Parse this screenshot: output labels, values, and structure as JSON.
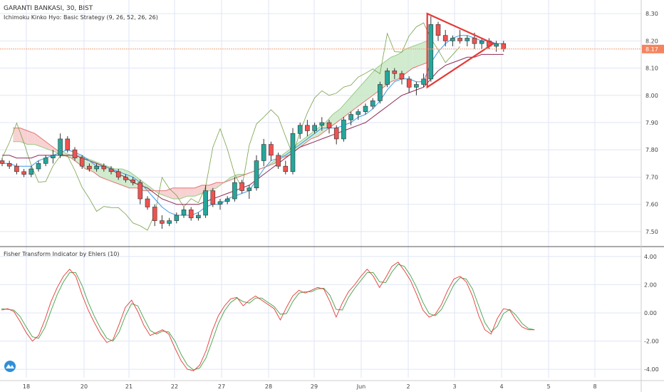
{
  "colors": {
    "grid": "#dfe6f5",
    "axis_text": "#444444",
    "candle_up": "#26a69a",
    "candle_down": "#ef5350",
    "candle_wick": "#333333",
    "tenkan": "#3d9be9",
    "kijun": "#8e2a55",
    "lagging": "#78a04a",
    "lead_a": "#9acb87",
    "lead_b": "#e57373",
    "cloud_bull": "#c9e8c6",
    "cloud_bear": "#f7caca",
    "triangle": "#e53935",
    "fisher": "#e53935",
    "trigger": "#43a047",
    "price_line": "#f2a27d",
    "price_tag_bg": "#f4845f"
  },
  "chart_data": [
    {
      "type": "candlestick",
      "title": "GARANTI BANKASI, 30, BIST",
      "subtitle": "Ichimoku Kinko Hyo: Basic Strategy (9, 26, 52, 26, 26)",
      "x_ticks": [
        "18",
        "20",
        "21",
        "22",
        "27",
        "28",
        "29",
        "Jun",
        "2",
        "3",
        "4",
        "5",
        "8"
      ],
      "ylim": [
        7.45,
        8.35
      ],
      "y_ticks": [
        7.5,
        7.6,
        7.7,
        7.8,
        7.9,
        8.0,
        8.1,
        8.2,
        8.3
      ],
      "y_tick_labels": [
        "7.50",
        "7.60",
        "7.70",
        "7.80",
        "7.90",
        "8.00",
        "8.10",
        "8.20",
        "8.30"
      ],
      "last_price": 8.17,
      "last_price_label": "8.17",
      "candles": [
        [
          7.76,
          7.77,
          7.74,
          7.75
        ],
        [
          7.75,
          7.76,
          7.73,
          7.74
        ],
        [
          7.74,
          7.75,
          7.71,
          7.72
        ],
        [
          7.72,
          7.73,
          7.7,
          7.71
        ],
        [
          7.71,
          7.74,
          7.7,
          7.73
        ],
        [
          7.73,
          7.76,
          7.72,
          7.75
        ],
        [
          7.75,
          7.78,
          7.74,
          7.77
        ],
        [
          7.77,
          7.8,
          7.75,
          7.78
        ],
        [
          7.78,
          7.86,
          7.77,
          7.84
        ],
        [
          7.84,
          7.85,
          7.79,
          7.8
        ],
        [
          7.8,
          7.81,
          7.76,
          7.77
        ],
        [
          7.77,
          7.78,
          7.73,
          7.74
        ],
        [
          7.74,
          7.75,
          7.72,
          7.73
        ],
        [
          7.73,
          7.75,
          7.72,
          7.74
        ],
        [
          7.74,
          7.75,
          7.72,
          7.73
        ],
        [
          7.73,
          7.74,
          7.71,
          7.72
        ],
        [
          7.72,
          7.73,
          7.69,
          7.7
        ],
        [
          7.7,
          7.71,
          7.68,
          7.69
        ],
        [
          7.69,
          7.7,
          7.67,
          7.68
        ],
        [
          7.68,
          7.69,
          7.6,
          7.62
        ],
        [
          7.62,
          7.63,
          7.58,
          7.59
        ],
        [
          7.59,
          7.6,
          7.52,
          7.54
        ],
        [
          7.54,
          7.56,
          7.51,
          7.53
        ],
        [
          7.53,
          7.55,
          7.52,
          7.54
        ],
        [
          7.54,
          7.57,
          7.53,
          7.56
        ],
        [
          7.56,
          7.59,
          7.55,
          7.58
        ],
        [
          7.58,
          7.59,
          7.54,
          7.55
        ],
        [
          7.55,
          7.57,
          7.54,
          7.56
        ],
        [
          7.56,
          7.67,
          7.55,
          7.65
        ],
        [
          7.65,
          7.66,
          7.59,
          7.6
        ],
        [
          7.6,
          7.62,
          7.58,
          7.61
        ],
        [
          7.61,
          7.63,
          7.6,
          7.62
        ],
        [
          7.62,
          7.7,
          7.61,
          7.68
        ],
        [
          7.68,
          7.69,
          7.64,
          7.65
        ],
        [
          7.65,
          7.67,
          7.62,
          7.66
        ],
        [
          7.66,
          7.78,
          7.65,
          7.76
        ],
        [
          7.76,
          7.84,
          7.74,
          7.82
        ],
        [
          7.82,
          7.83,
          7.76,
          7.78
        ],
        [
          7.78,
          7.79,
          7.73,
          7.74
        ],
        [
          7.74,
          7.76,
          7.71,
          7.72
        ],
        [
          7.72,
          7.88,
          7.71,
          7.86
        ],
        [
          7.86,
          7.9,
          7.84,
          7.89
        ],
        [
          7.89,
          7.91,
          7.85,
          7.87
        ],
        [
          7.87,
          7.9,
          7.86,
          7.89
        ],
        [
          7.89,
          7.92,
          7.87,
          7.9
        ],
        [
          7.9,
          7.91,
          7.86,
          7.88
        ],
        [
          7.88,
          7.89,
          7.82,
          7.84
        ],
        [
          7.84,
          7.92,
          7.83,
          7.91
        ],
        [
          7.91,
          7.94,
          7.89,
          7.93
        ],
        [
          7.93,
          7.95,
          7.91,
          7.94
        ],
        [
          7.94,
          7.97,
          7.93,
          7.96
        ],
        [
          7.96,
          7.99,
          7.95,
          7.98
        ],
        [
          7.98,
          8.05,
          7.97,
          8.04
        ],
        [
          8.04,
          8.1,
          8.03,
          8.09
        ],
        [
          8.09,
          8.1,
          8.06,
          8.08
        ],
        [
          8.08,
          8.09,
          8.04,
          8.06
        ],
        [
          8.06,
          8.07,
          8.01,
          8.03
        ],
        [
          8.03,
          8.05,
          8.0,
          8.04
        ],
        [
          8.04,
          8.08,
          8.03,
          8.06
        ],
        [
          8.06,
          8.29,
          8.05,
          8.26
        ],
        [
          8.26,
          8.27,
          8.2,
          8.22
        ],
        [
          8.22,
          8.24,
          8.18,
          8.2
        ],
        [
          8.2,
          8.22,
          8.18,
          8.21
        ],
        [
          8.21,
          8.24,
          8.19,
          8.2
        ],
        [
          8.2,
          8.22,
          8.18,
          8.21
        ],
        [
          8.21,
          8.23,
          8.17,
          8.19
        ],
        [
          8.19,
          8.21,
          8.17,
          8.2
        ],
        [
          8.2,
          8.21,
          8.17,
          8.18
        ],
        [
          8.18,
          8.2,
          8.16,
          8.19
        ],
        [
          8.19,
          8.2,
          8.16,
          8.17
        ]
      ],
      "ichimoku": {
        "tenkan": [
          7.75,
          7.75,
          7.74,
          7.74,
          7.74,
          7.76,
          7.77,
          7.78,
          7.79,
          7.8,
          7.79,
          7.78,
          7.76,
          7.74,
          7.74,
          7.73,
          7.72,
          7.71,
          7.7,
          7.68,
          7.65,
          7.62,
          7.59,
          7.57,
          7.56,
          7.56,
          7.56,
          7.57,
          7.59,
          7.6,
          7.6,
          7.62,
          7.63,
          7.64,
          7.65,
          7.69,
          7.73,
          7.76,
          7.77,
          7.78,
          7.8,
          7.82,
          7.84,
          7.86,
          7.88,
          7.88,
          7.88,
          7.89,
          7.9,
          7.92,
          7.93,
          7.95,
          7.98,
          8.02,
          8.05,
          8.06,
          8.06,
          8.05,
          8.05,
          8.12,
          8.16,
          8.19,
          8.21,
          8.22,
          8.22,
          8.21,
          8.2,
          8.2,
          8.19,
          8.19
        ],
        "kijun": [
          7.78,
          7.78,
          7.77,
          7.77,
          7.77,
          7.78,
          7.78,
          7.78,
          7.78,
          7.78,
          7.78,
          7.77,
          7.76,
          7.75,
          7.74,
          7.73,
          7.71,
          7.7,
          7.68,
          7.67,
          7.66,
          7.64,
          7.62,
          7.61,
          7.6,
          7.6,
          7.6,
          7.6,
          7.61,
          7.62,
          7.63,
          7.64,
          7.65,
          7.66,
          7.67,
          7.69,
          7.71,
          7.73,
          7.75,
          7.77,
          7.79,
          7.81,
          7.82,
          7.83,
          7.84,
          7.85,
          7.86,
          7.87,
          7.88,
          7.89,
          7.9,
          7.92,
          7.94,
          7.96,
          7.98,
          8.0,
          8.01,
          8.02,
          8.03,
          8.06,
          8.09,
          8.11,
          8.12,
          8.13,
          8.14,
          8.14,
          8.15,
          8.15,
          8.15,
          8.15
        ],
        "lead_a_line": [
          7.83,
          7.83,
          7.82,
          7.82,
          7.81,
          7.8,
          7.79,
          7.79,
          7.78,
          7.78,
          7.77,
          7.76,
          7.75,
          7.74,
          7.73,
          7.73,
          7.72,
          7.7,
          7.68,
          7.66,
          7.64,
          7.63,
          7.62,
          7.62,
          7.63,
          7.63,
          7.64,
          7.65,
          7.66,
          7.68,
          7.7,
          7.71,
          7.71,
          7.72,
          7.73,
          7.74,
          7.76,
          7.78,
          7.8,
          7.82,
          7.84,
          7.86,
          7.88,
          7.9,
          7.93,
          7.95,
          7.98,
          8.01,
          8.04,
          8.07,
          8.1,
          8.12,
          8.14,
          8.15,
          8.17,
          8.18,
          8.19,
          8.2
        ],
        "lead_b_line": [
          7.88,
          7.88,
          7.87,
          7.86,
          7.84,
          7.82,
          7.8,
          7.78,
          7.77,
          7.75,
          7.73,
          7.72,
          7.7,
          7.69,
          7.68,
          7.67,
          7.66,
          7.66,
          7.65,
          7.65,
          7.65,
          7.65,
          7.66,
          7.66,
          7.66,
          7.66,
          7.67,
          7.67,
          7.68,
          7.68,
          7.69,
          7.7,
          7.71,
          7.72,
          7.73,
          7.74,
          7.75,
          7.77,
          7.78,
          7.8,
          7.82,
          7.84,
          7.85,
          7.87,
          7.89,
          7.91,
          7.93,
          7.95,
          7.97,
          7.99,
          8.01,
          8.03,
          8.05,
          8.06,
          8.08,
          8.1,
          8.11,
          8.12
        ]
      },
      "triangle": {
        "points": [
          [
            58.5,
            8.3
          ],
          [
            67.6,
            8.19
          ],
          [
            58.5,
            8.03
          ]
        ]
      }
    },
    {
      "type": "line",
      "title": "Fisher Transform Indicator by Ehlers (10)",
      "ylim": [
        -4.6,
        4.6
      ],
      "y_ticks": [
        4.0,
        2.0,
        0.0,
        -2.0,
        -4.0
      ],
      "y_tick_labels": [
        "4.00",
        "2.00",
        "0.00",
        "-2.00",
        "-4.00"
      ],
      "series": [
        {
          "values": [
            0.2,
            0.3,
            0.1,
            -0.6,
            -1.4,
            -2.0,
            -1.6,
            -0.5,
            0.8,
            1.8,
            2.6,
            3.1,
            2.6,
            1.3,
            0.2,
            -0.7,
            -1.5,
            -2.1,
            -1.9,
            -0.8,
            0.4,
            0.9,
            0.1,
            -0.9,
            -1.6,
            -1.4,
            -1.2,
            -1.5,
            -2.5,
            -3.4,
            -4.0,
            -4.1,
            -3.7,
            -2.7,
            -1.3,
            -0.2,
            0.5,
            1.0,
            1.1,
            0.5,
            0.9,
            1.2,
            0.9,
            0.6,
            0.3,
            -0.5,
            0.4,
            1.2,
            1.6,
            1.4,
            1.6,
            1.8,
            1.7,
            0.8,
            -0.3,
            0.7,
            1.5,
            2.0,
            2.6,
            3.1,
            2.6,
            1.8,
            2.5,
            3.3,
            3.6,
            3.0,
            2.3,
            1.3,
            0.2,
            -0.3,
            -0.1,
            0.6,
            1.6,
            2.4,
            2.6,
            2.2,
            1.2,
            -0.2,
            -1.2,
            -1.5,
            -0.4,
            0.3,
            0.2,
            -0.5,
            -1.0,
            -1.2,
            -1.2
          ]
        },
        {
          "values": [
            0.3,
            0.25,
            0.2,
            -0.25,
            -1.0,
            -1.7,
            -1.8,
            -1.05,
            0.15,
            1.3,
            2.2,
            2.85,
            2.85,
            1.95,
            0.75,
            -0.25,
            -1.1,
            -1.8,
            -2.0,
            -1.35,
            -0.2,
            0.65,
            0.5,
            -0.4,
            -1.25,
            -1.5,
            -1.3,
            -1.35,
            -2.0,
            -2.95,
            -3.7,
            -4.05,
            -3.9,
            -3.2,
            -2.0,
            -0.75,
            0.15,
            0.75,
            1.05,
            0.8,
            0.7,
            1.05,
            1.05,
            0.75,
            0.45,
            -0.1,
            -0.05,
            0.8,
            1.4,
            1.5,
            1.5,
            1.7,
            1.75,
            1.25,
            0.25,
            0.2,
            1.1,
            1.75,
            2.3,
            2.85,
            2.85,
            2.2,
            2.15,
            2.9,
            3.45,
            3.3,
            2.65,
            1.8,
            0.75,
            -0.05,
            -0.2,
            0.25,
            1.1,
            2.0,
            2.5,
            2.4,
            1.7,
            0.5,
            -0.7,
            -1.35,
            -0.95,
            -0.05,
            0.25,
            -0.15,
            -0.75,
            -1.1,
            -1.2
          ]
        }
      ]
    }
  ]
}
